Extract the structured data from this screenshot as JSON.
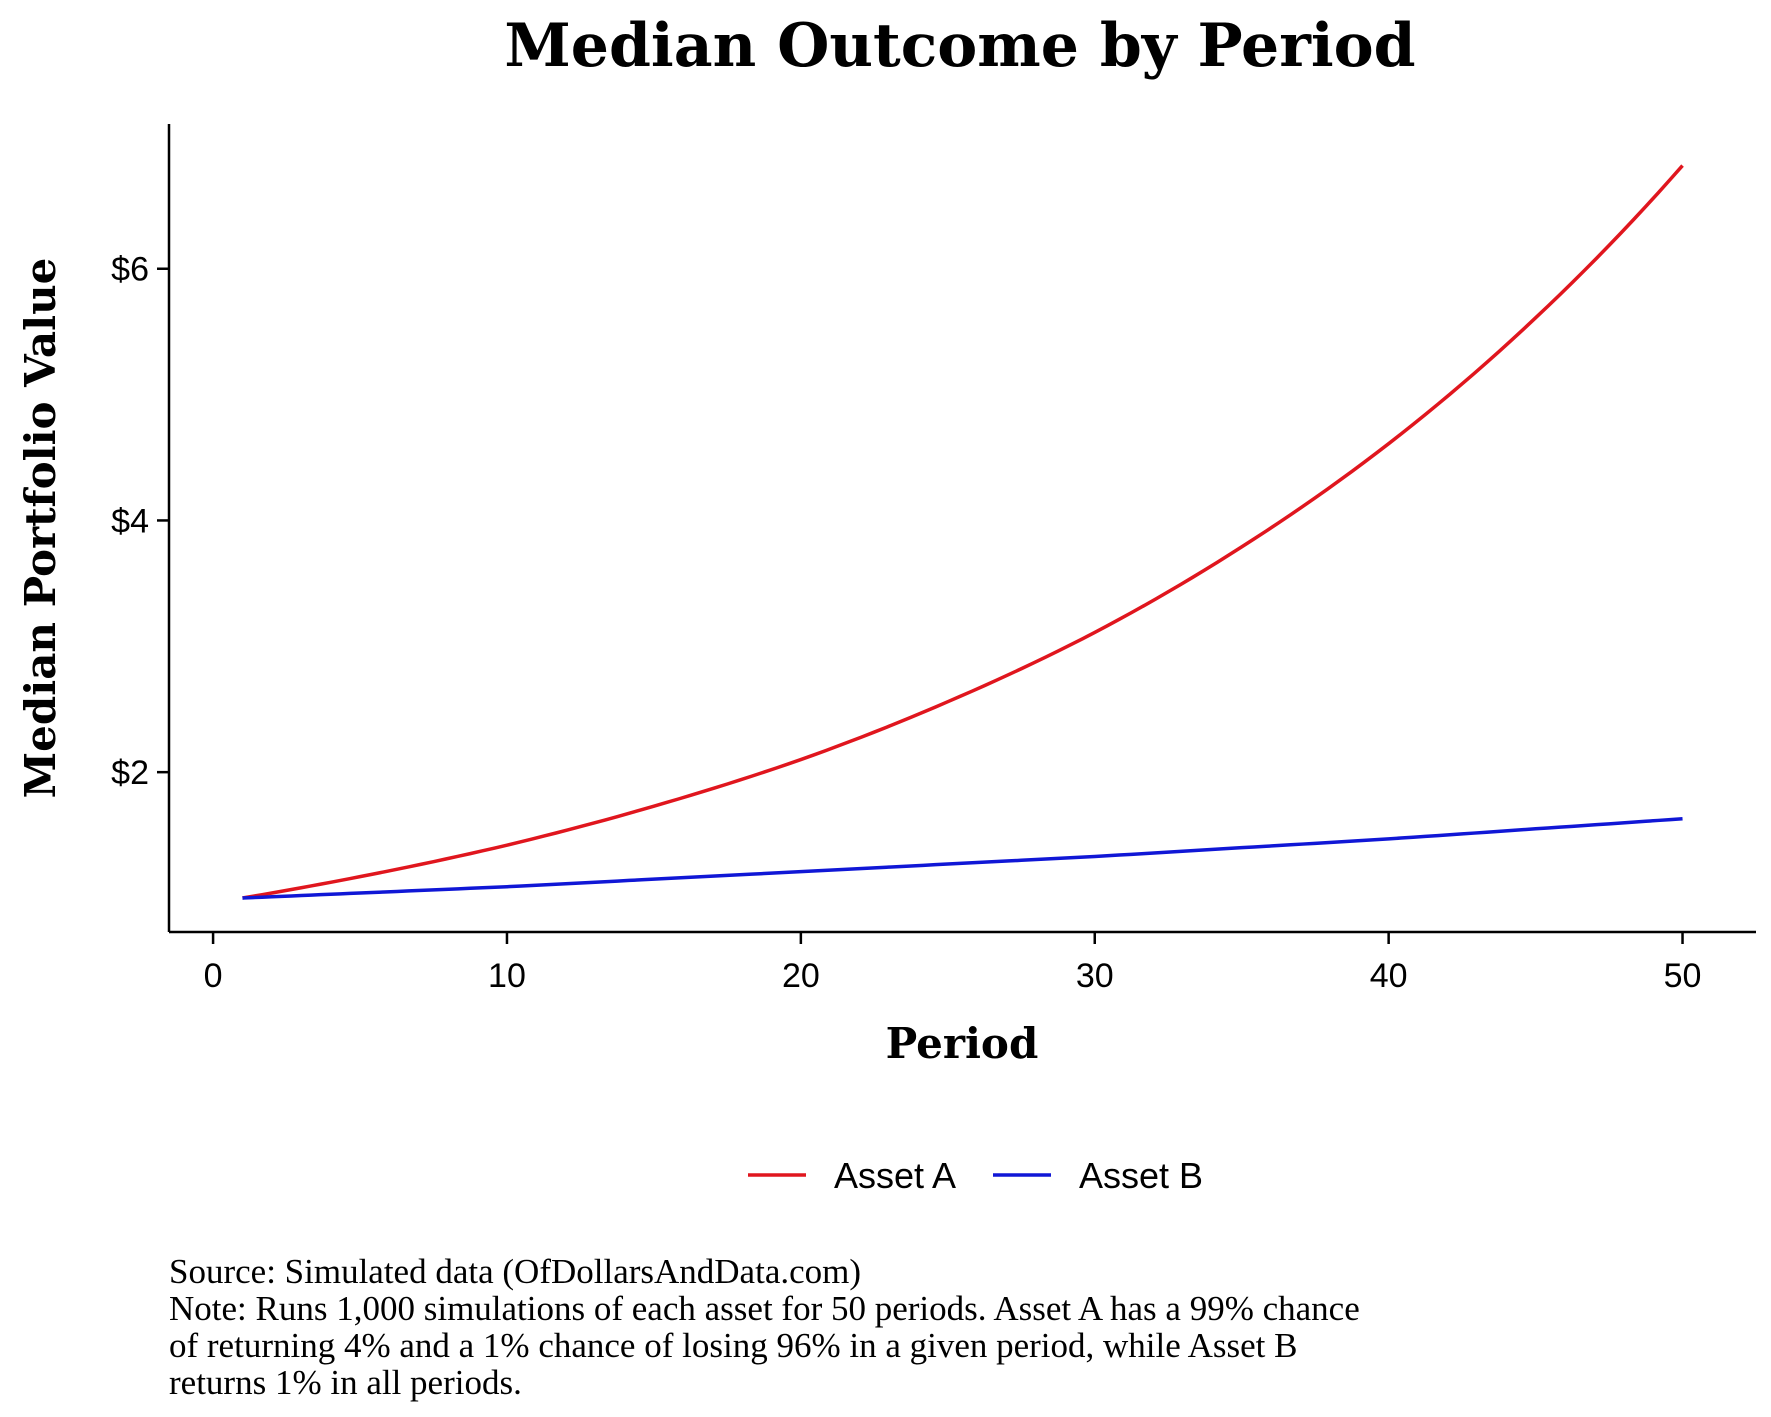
{
  "colors": {
    "background": "#ffffff",
    "axis": "#000000",
    "asset_a": "#e0161e",
    "asset_b": "#1017d6"
  },
  "footnotes": {
    "source": "Source:  Simulated data (OfDollarsAndData.com)",
    "note_lines": [
      "Note: Runs 1,000 simulations of each asset for 50 periods. Asset A has a 99% chance",
      "of returning 4% and a 1% chance of losing 96% in a given period, while Asset B",
      "returns 1% in all periods."
    ]
  },
  "chart_data": {
    "type": "line",
    "title": "Median Outcome by Period",
    "xlabel": "Period",
    "ylabel": "Median Portfolio Value",
    "xlim": [
      -1.5,
      52.5
    ],
    "ylim": [
      0.73,
      7.15
    ],
    "x_ticks": [
      0,
      10,
      20,
      30,
      40,
      50
    ],
    "x_tick_labels": [
      "0",
      "10",
      "20",
      "30",
      "40",
      "50"
    ],
    "y_ticks": [
      2,
      4,
      6
    ],
    "y_tick_labels": [
      "$2",
      "$4",
      "$6"
    ],
    "grid": false,
    "legend_position": "bottom",
    "x": [
      1,
      5,
      10,
      15,
      20,
      25,
      30,
      35,
      40,
      45,
      50
    ],
    "series": [
      {
        "name": "Asset A",
        "color": "#e0161e",
        "values": [
          1.0,
          1.17,
          1.42,
          1.73,
          2.1,
          2.56,
          3.11,
          3.79,
          4.61,
          5.61,
          6.82
        ]
      },
      {
        "name": "Asset B",
        "color": "#1017d6",
        "values": [
          1.0,
          1.04,
          1.09,
          1.15,
          1.21,
          1.27,
          1.33,
          1.4,
          1.47,
          1.55,
          1.63
        ]
      }
    ]
  }
}
